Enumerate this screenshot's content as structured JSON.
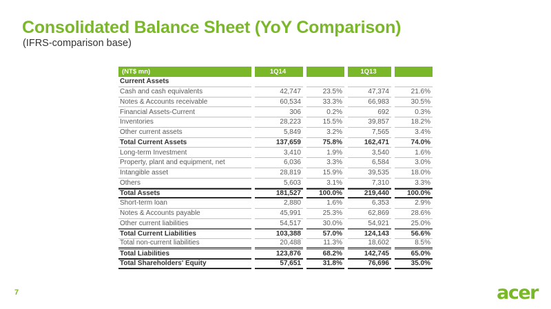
{
  "slide": {
    "title": "Consolidated Balance Sheet (YoY Comparison)",
    "subtitle": "(IFRS-comparison base)",
    "page_number": "7",
    "logo_text": "acer"
  },
  "colors": {
    "accent_green": "#7AB829",
    "text_dark": "#333333",
    "text_gray": "#595959",
    "line_light": "#c2c2c2",
    "line_dark": "#2b2b2b"
  },
  "table": {
    "header": [
      "(NT$ mn)",
      "1Q14",
      "",
      "1Q13",
      ""
    ],
    "rows": [
      {
        "label": "Current Assets",
        "values": [
          "",
          "",
          "",
          ""
        ],
        "style": "section"
      },
      {
        "label": "Cash and cash equivalents",
        "values": [
          "42,747",
          "23.5%",
          "47,374",
          "21.6%"
        ],
        "style": "normal"
      },
      {
        "label": "Notes & Accounts receivable",
        "values": [
          "60,534",
          "33.3%",
          "66,983",
          "30.5%"
        ],
        "style": "normal"
      },
      {
        "label": "Financial Assets-Current",
        "values": [
          "306",
          "0.2%",
          "692",
          "0.3%"
        ],
        "style": "normal"
      },
      {
        "label": "Inventories",
        "values": [
          "28,223",
          "15.5%",
          "39,857",
          "18.2%"
        ],
        "style": "normal"
      },
      {
        "label": "Other current assets",
        "values": [
          "5,849",
          "3.2%",
          "7,565",
          "3.4%"
        ],
        "style": "normal"
      },
      {
        "label": "Total Current Assets",
        "values": [
          "137,659",
          "75.8%",
          "162,471",
          "74.0%"
        ],
        "style": "total"
      },
      {
        "label": "Long-term Investment",
        "values": [
          "3,410",
          "1.9%",
          "3,540",
          "1.6%"
        ],
        "style": "normal"
      },
      {
        "label": "Property, plant and equipment, net",
        "values": [
          "6,036",
          "3.3%",
          "6,584",
          "3.0%"
        ],
        "style": "normal"
      },
      {
        "label": "Intangible asset",
        "values": [
          "28,819",
          "15.9%",
          "39,535",
          "18.0%"
        ],
        "style": "normal"
      },
      {
        "label": "Others",
        "values": [
          "5,603",
          "3.1%",
          "7,310",
          "3.3%"
        ],
        "style": "normal"
      },
      {
        "label": "Total Assets",
        "values": [
          "181,527",
          "100.0%",
          "219,440",
          "100.0%"
        ],
        "style": "grand"
      },
      {
        "label": "Short-term loan",
        "values": [
          "2,880",
          "1.6%",
          "6,353",
          "2.9%"
        ],
        "style": "normal"
      },
      {
        "label": "Notes & Accounts payable",
        "values": [
          "45,991",
          "25.3%",
          "62,869",
          "28.6%"
        ],
        "style": "normal"
      },
      {
        "label": "Other current liabilities",
        "values": [
          "54,517",
          "30.0%",
          "54,921",
          "25.0%"
        ],
        "style": "normal"
      },
      {
        "label": "Total Current Liabilities",
        "values": [
          "103,388",
          "57.0%",
          "124,143",
          "56.6%"
        ],
        "style": "total dark-top"
      },
      {
        "label": "Total non-current liabilities",
        "values": [
          "20,488",
          "11.3%",
          "18,602",
          "8.5%"
        ],
        "style": "normal double-bottom"
      },
      {
        "label": "Total Liabilities",
        "values": [
          "123,876",
          "68.2%",
          "142,745",
          "65.0%"
        ],
        "style": "grand-bottom"
      },
      {
        "label": "Total Shareholders' Equity",
        "values": [
          "57,651",
          "31.8%",
          "76,696",
          "35.0%"
        ],
        "style": "grand-bottom"
      }
    ]
  }
}
